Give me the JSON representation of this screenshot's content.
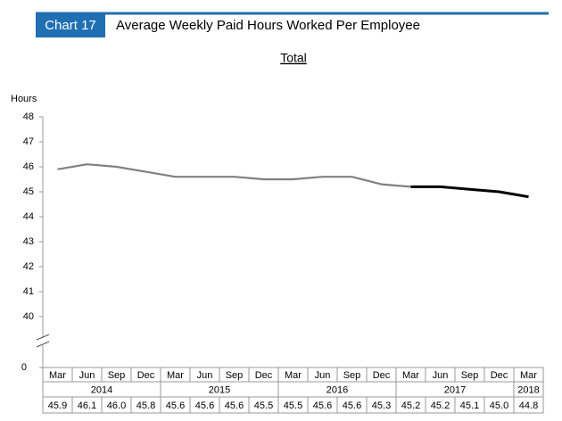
{
  "chart_data": {
    "type": "line",
    "chart_label": "Chart 17",
    "title": "Average Weekly Paid Hours Worked Per Employee",
    "subtitle": "Total",
    "y_label": "Hours",
    "categories": [
      "Mar",
      "Jun",
      "Sep",
      "Dec",
      "Mar",
      "Jun",
      "Sep",
      "Dec",
      "Mar",
      "Jun",
      "Sep",
      "Dec",
      "Mar",
      "Jun",
      "Sep",
      "Dec",
      "Mar"
    ],
    "year_groups": [
      {
        "label": "2014",
        "count": 4
      },
      {
        "label": "2015",
        "count": 4
      },
      {
        "label": "2016",
        "count": 4
      },
      {
        "label": "2017",
        "count": 4
      },
      {
        "label": "2018",
        "count": 1
      }
    ],
    "series": [
      {
        "color": "#808080",
        "values": [
          45.9,
          46.1,
          46.0,
          45.8,
          45.6,
          45.6,
          45.6,
          45.5,
          45.5,
          45.6,
          45.6,
          45.3,
          45.2,
          null,
          null,
          null,
          null
        ]
      },
      {
        "color": "#000000",
        "values": [
          null,
          null,
          null,
          null,
          null,
          null,
          null,
          null,
          null,
          null,
          null,
          null,
          45.2,
          45.2,
          45.1,
          45.0,
          44.8
        ]
      }
    ],
    "value_labels": [
      "45.9",
      "46.1",
      "46.0",
      "45.8",
      "45.6",
      "45.6",
      "45.6",
      "45.5",
      "45.5",
      "45.6",
      "45.6",
      "45.3",
      "45.2",
      "45.2",
      "45.1",
      "45.0",
      "44.8"
    ],
    "ylim": [
      40,
      48
    ],
    "yticks": [
      40,
      41,
      42,
      43,
      44,
      45,
      46,
      47,
      48
    ],
    "axis_break": true,
    "floor_tick": 0
  }
}
